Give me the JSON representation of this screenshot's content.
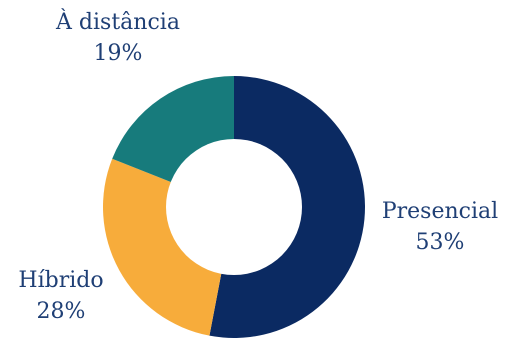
{
  "chart_data": {
    "type": "pie",
    "title": "",
    "donut": true,
    "legend": "none",
    "slices": [
      {
        "label": "Presencial",
        "value": 53,
        "value_label": "53%",
        "color": "#0b2a62"
      },
      {
        "label": "Híbrido",
        "value": 28,
        "value_label": "28%",
        "color": "#f7ac3b"
      },
      {
        "label": "À distância",
        "value": 19,
        "value_label": "19%",
        "color": "#177b7c"
      }
    ]
  }
}
